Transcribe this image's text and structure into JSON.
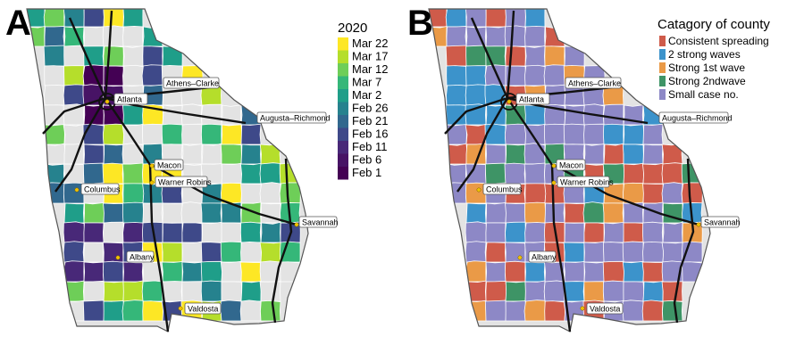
{
  "panels": [
    {
      "letter": "A"
    },
    {
      "letter": "B"
    }
  ],
  "cities": [
    {
      "name": "Atlanta"
    },
    {
      "name": "Athens–Clarke"
    },
    {
      "name": "Augusta–Richmond"
    },
    {
      "name": "Macon"
    },
    {
      "name": "Warner Robins"
    },
    {
      "name": "Columbus"
    },
    {
      "name": "Savannah"
    },
    {
      "name": "Albany"
    },
    {
      "name": "Valdosta"
    }
  ],
  "legend_a": {
    "title": "2020",
    "items": [
      {
        "label": "Mar 22",
        "color": "#fde725"
      },
      {
        "label": "Mar 17",
        "color": "#b5de2b"
      },
      {
        "label": "Mar 12",
        "color": "#6ece58"
      },
      {
        "label": "Mar 7",
        "color": "#35b779"
      },
      {
        "label": "Mar 2",
        "color": "#1f9e89"
      },
      {
        "label": "Feb 26",
        "color": "#26828e"
      },
      {
        "label": "Feb 21",
        "color": "#31688e"
      },
      {
        "label": "Feb 16",
        "color": "#3e4989"
      },
      {
        "label": "Feb 11",
        "color": "#482878"
      },
      {
        "label": "Feb 6",
        "color": "#471365"
      },
      {
        "label": "Feb 1",
        "color": "#440154"
      }
    ],
    "no_data_color": "#e3e3e3"
  },
  "legend_b": {
    "title": "Catagory of county",
    "items": [
      {
        "label": "Consistent spreading",
        "color": "#cf5b4a"
      },
      {
        "label": "2 strong waves",
        "color": "#3c93cb"
      },
      {
        "label": "Strong 1st wave",
        "color": "#ea9a47"
      },
      {
        "label": "Strong 2ndwave",
        "color": "#3e9466"
      },
      {
        "label": "Small case no.",
        "color": "#8d88c6"
      }
    ]
  }
}
